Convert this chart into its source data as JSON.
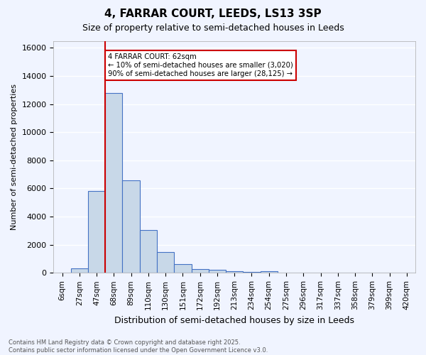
{
  "title": "4, FARRAR COURT, LEEDS, LS13 3SP",
  "subtitle": "Size of property relative to semi-detached houses in Leeds",
  "xlabel": "Distribution of semi-detached houses by size in Leeds",
  "ylabel": "Number of semi-detached properties",
  "bar_color": "#c8d8e8",
  "bar_edge_color": "#4472c4",
  "bin_labels": [
    "6sqm",
    "27sqm",
    "47sqm",
    "68sqm",
    "89sqm",
    "110sqm",
    "130sqm",
    "151sqm",
    "172sqm",
    "192sqm",
    "213sqm",
    "234sqm",
    "254sqm",
    "275sqm",
    "296sqm",
    "317sqm",
    "337sqm",
    "358sqm",
    "379sqm",
    "399sqm",
    "420sqm"
  ],
  "bar_heights": [
    0,
    300,
    5800,
    12800,
    6600,
    3050,
    1500,
    620,
    250,
    200,
    100,
    50,
    100,
    0,
    0,
    0,
    0,
    0,
    0,
    0,
    0
  ],
  "ylim": [
    0,
    16500
  ],
  "yticks": [
    0,
    2000,
    4000,
    6000,
    8000,
    10000,
    12000,
    14000,
    16000
  ],
  "red_line_x": 2.5,
  "annotation_text": "4 FARRAR COURT: 62sqm\n← 10% of semi-detached houses are smaller (3,020)\n90% of semi-detached houses are larger (28,125) →",
  "annotation_box_color": "#ffffff",
  "annotation_border_color": "#cc0000",
  "footer_line1": "Contains HM Land Registry data © Crown copyright and database right 2025.",
  "footer_line2": "Contains public sector information licensed under the Open Government Licence v3.0.",
  "background_color": "#f0f4ff",
  "grid_color": "#ffffff"
}
